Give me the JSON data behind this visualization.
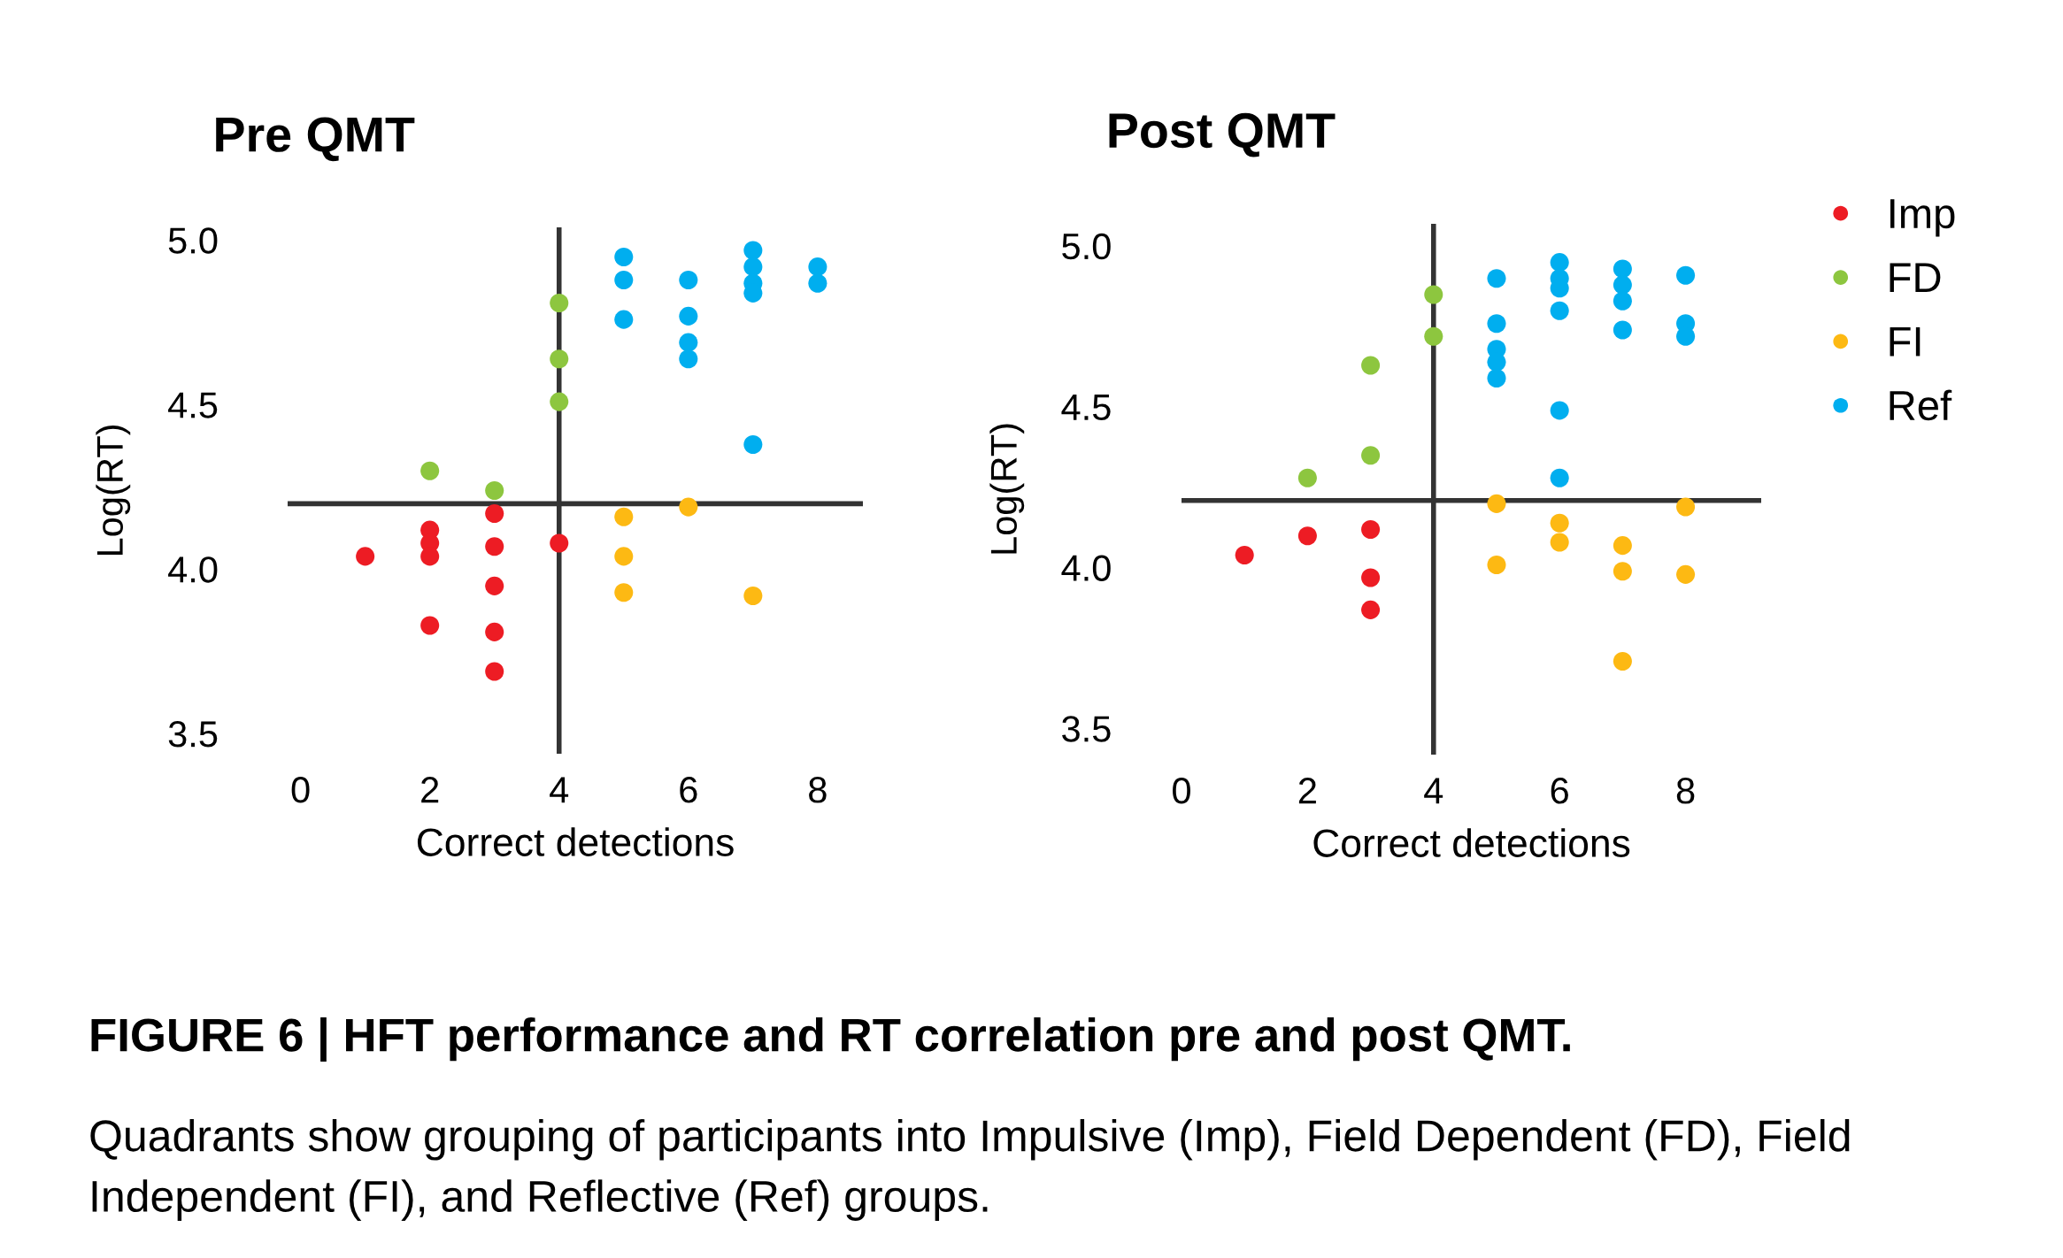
{
  "chart_data": [
    {
      "type": "scatter",
      "title": "Pre QMT",
      "xlabel": "Correct detections",
      "ylabel": "Log(RT)",
      "xlim": [
        -0.2,
        8.7
      ],
      "ylim": [
        3.45,
        5.05
      ],
      "xticks": [
        0,
        2,
        4,
        6,
        8
      ],
      "yticks": [
        {
          "value": 3.5,
          "label": "3.5"
        },
        {
          "value": 4,
          "label": "4.0"
        },
        {
          "value": 4.5,
          "label": "4.5"
        },
        {
          "value": 5,
          "label": "5.0"
        }
      ],
      "grid": false,
      "legend": false,
      "marker": "circle",
      "ref_lines": [
        {
          "axis": "y",
          "value": 4.21,
          "color": "#333333"
        },
        {
          "axis": "x",
          "value": 4,
          "color": "#333333"
        }
      ],
      "series": [
        {
          "color": "#ed1c24",
          "x": [
            1,
            2,
            2,
            2,
            2,
            3,
            3,
            3,
            3,
            3,
            4
          ],
          "values": [
            4.05,
            4.13,
            4.09,
            4.05,
            3.84,
            4.18,
            4.08,
            3.96,
            3.82,
            3.7,
            4.09
          ]
        },
        {
          "color": "#8dc63f",
          "x": [
            2,
            3,
            4,
            4,
            4
          ],
          "values": [
            4.31,
            4.25,
            4.82,
            4.65,
            4.52
          ]
        },
        {
          "color": "#fdb913",
          "x": [
            5,
            5,
            5,
            6,
            7
          ],
          "values": [
            4.17,
            4.05,
            3.94,
            4.2,
            3.93
          ]
        },
        {
          "color": "#00aeef",
          "x": [
            5,
            5,
            5,
            6,
            6,
            6,
            6,
            7,
            7,
            7,
            7,
            7,
            8,
            8
          ],
          "values": [
            4.96,
            4.89,
            4.77,
            4.89,
            4.78,
            4.7,
            4.65,
            4.98,
            4.93,
            4.88,
            4.85,
            4.39,
            4.93,
            4.88
          ]
        }
      ],
      "annotations": [
        "FIGURE 6 | HFT performance and RT correlation pre and post QMT.",
        "Quadrants show grouping of participants into Impulsive (Imp), Field Dependent (FD), Field Independent (FI), and Reflective (Ref) groups."
      ]
    },
    {
      "type": "scatter",
      "title": "Post QMT",
      "xlabel": "Correct detections",
      "ylabel": "Log(RT)",
      "xlim": [
        0,
        9.2
      ],
      "ylim": [
        3.43,
        5.08
      ],
      "xticks": [
        0,
        2,
        4,
        6,
        8
      ],
      "yticks": [
        {
          "value": 3.5,
          "label": "3.5"
        },
        {
          "value": 4,
          "label": "4.0"
        },
        {
          "value": 4.5,
          "label": "4.5"
        },
        {
          "value": 5,
          "label": "5.0"
        }
      ],
      "grid": false,
      "legend": "top right",
      "marker": "circle",
      "ref_lines": [
        {
          "axis": "y",
          "value": 4.22,
          "color": "#333333"
        },
        {
          "axis": "x",
          "value": 4,
          "color": "#333333"
        }
      ],
      "series": [
        {
          "name": "Imp",
          "color": "#ed1c24",
          "x": [
            1,
            2,
            3,
            3,
            3
          ],
          "values": [
            4.05,
            4.11,
            4.13,
            3.98,
            3.88
          ]
        },
        {
          "name": "FD",
          "color": "#8dc63f",
          "x": [
            2,
            3,
            3,
            4,
            4
          ],
          "values": [
            4.29,
            4.36,
            4.64,
            4.86,
            4.73
          ]
        },
        {
          "name": "FI",
          "color": "#fdb913",
          "x": [
            5,
            5,
            6,
            6,
            7,
            7,
            7,
            8,
            8
          ],
          "values": [
            4.21,
            4.02,
            4.15,
            4.09,
            4.08,
            4.0,
            3.72,
            4.2,
            3.99
          ]
        },
        {
          "name": "Ref",
          "color": "#00aeef",
          "x": [
            5,
            5,
            5,
            5,
            5,
            6,
            6,
            6,
            6,
            6,
            6,
            7,
            7,
            7,
            7,
            8,
            8,
            8
          ],
          "values": [
            4.91,
            4.77,
            4.69,
            4.65,
            4.6,
            4.96,
            4.91,
            4.88,
            4.81,
            4.5,
            4.29,
            4.94,
            4.89,
            4.84,
            4.75,
            4.92,
            4.77,
            4.73
          ]
        }
      ]
    }
  ]
}
